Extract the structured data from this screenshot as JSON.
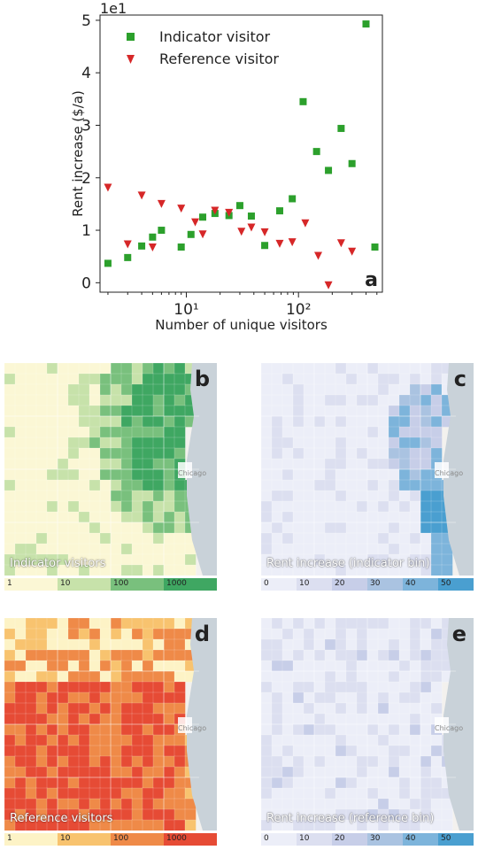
{
  "chart_data": [
    {
      "type": "scatter",
      "panel_label": "a",
      "xlabel": "Number of unique visitors",
      "ylabel": "Rent increase ($/a)",
      "xscale": "log",
      "xlim": [
        1.7,
        560
      ],
      "ylim": [
        -0.18,
        5.1
      ],
      "y_scale_note": "1e1",
      "xticks": [
        10,
        100
      ],
      "xtick_labels": [
        "10¹",
        "10²"
      ],
      "yticks": [
        0,
        1,
        2,
        3,
        4,
        5
      ],
      "grid": false,
      "legend_position": "top-left",
      "series": [
        {
          "name": "Indicator visitor",
          "marker": "square",
          "color": "#2ca02c",
          "points": [
            [
              2,
              0.37
            ],
            [
              3,
              0.48
            ],
            [
              4,
              0.7
            ],
            [
              5,
              0.87
            ],
            [
              6,
              1.0
            ],
            [
              9,
              0.68
            ],
            [
              11,
              0.92
            ],
            [
              14,
              1.25
            ],
            [
              18,
              1.32
            ],
            [
              24,
              1.28
            ],
            [
              30,
              1.47
            ],
            [
              38,
              1.27
            ],
            [
              50,
              0.71
            ],
            [
              68,
              1.37
            ],
            [
              88,
              1.6
            ],
            [
              110,
              3.45
            ],
            [
              145,
              2.5
            ],
            [
              185,
              2.14
            ],
            [
              240,
              2.94
            ],
            [
              300,
              2.27
            ],
            [
              400,
              4.93
            ],
            [
              480,
              0.68
            ]
          ]
        },
        {
          "name": "Reference visitor",
          "marker": "triangle-down",
          "color": "#d62728",
          "points": [
            [
              2,
              1.82
            ],
            [
              3,
              0.74
            ],
            [
              4,
              1.67
            ],
            [
              5,
              0.68
            ],
            [
              6,
              1.51
            ],
            [
              9,
              1.42
            ],
            [
              12,
              1.16
            ],
            [
              14,
              0.93
            ],
            [
              18,
              1.38
            ],
            [
              24,
              1.34
            ],
            [
              31,
              0.98
            ],
            [
              38,
              1.06
            ],
            [
              50,
              0.97
            ],
            [
              68,
              0.75
            ],
            [
              88,
              0.78
            ],
            [
              115,
              1.14
            ],
            [
              150,
              0.52
            ],
            [
              185,
              -0.04
            ],
            [
              240,
              0.76
            ],
            [
              300,
              0.6
            ]
          ]
        }
      ]
    },
    {
      "type": "heatmap",
      "panel_label": "b",
      "map_title": "Indicator visitors",
      "city_label": "Chicago",
      "colorbar_ticks": [
        "1",
        "10",
        "100",
        "1000"
      ],
      "colors": [
        "#fbf7d5",
        "#c7e2aa",
        "#79c07d",
        "#3fa762"
      ]
    },
    {
      "type": "heatmap",
      "panel_label": "c",
      "map_title": "Rent increase (indicator bin)",
      "city_label": "Chicago",
      "colorbar_ticks": [
        "0",
        "10",
        "20",
        "30",
        "40",
        "50"
      ],
      "colors": [
        "#eceef8",
        "#dcdff0",
        "#c7cee8",
        "#aac3e1",
        "#7db4db",
        "#4a9fd0"
      ]
    },
    {
      "type": "heatmap",
      "panel_label": "d",
      "map_title": "Reference visitors",
      "city_label": "Chicago",
      "colorbar_ticks": [
        "1",
        "10",
        "100",
        "1000"
      ],
      "colors": [
        "#fdf3c6",
        "#f8c36f",
        "#ef8a48",
        "#e64b35"
      ]
    },
    {
      "type": "heatmap",
      "panel_label": "e",
      "map_title": "Rent increase (reference bin)",
      "city_label": "Chicago",
      "colorbar_ticks": [
        "0",
        "10",
        "20",
        "30",
        "40",
        "50"
      ],
      "colors": [
        "#eceef8",
        "#dcdff0",
        "#c7cee8",
        "#aac3e1",
        "#7db4db",
        "#4a9fd0"
      ]
    }
  ]
}
